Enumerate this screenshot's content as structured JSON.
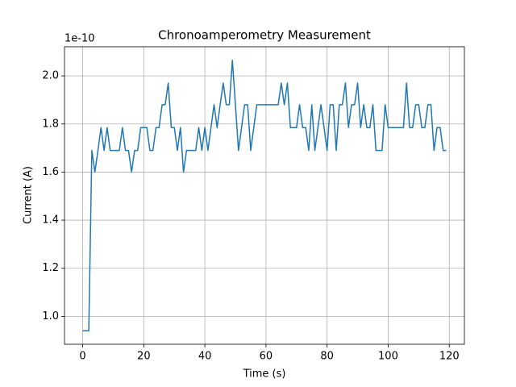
{
  "chart_data": {
    "type": "line",
    "title": "Chronoamperometry Measurement",
    "x_label": "Time (s)",
    "y_label": "Current (A)",
    "y_offset_label": "1e-10",
    "x": [
      0,
      1,
      2,
      3,
      4,
      5,
      6,
      7,
      8,
      9,
      10,
      11,
      12,
      13,
      14,
      15,
      16,
      17,
      18,
      19,
      20,
      21,
      22,
      23,
      24,
      25,
      26,
      27,
      28,
      29,
      30,
      31,
      32,
      33,
      34,
      35,
      36,
      37,
      38,
      39,
      40,
      41,
      42,
      43,
      44,
      45,
      46,
      47,
      48,
      49,
      50,
      51,
      52,
      53,
      54,
      55,
      56,
      57,
      58,
      59,
      60,
      61,
      62,
      63,
      64,
      65,
      66,
      67,
      68,
      69,
      70,
      71,
      72,
      73,
      74,
      75,
      76,
      77,
      78,
      79,
      80,
      81,
      82,
      83,
      84,
      85,
      86,
      87,
      88,
      89,
      90,
      91,
      92,
      93,
      94,
      95,
      96,
      97,
      98,
      99,
      100,
      101,
      102,
      103,
      104,
      105,
      106,
      107,
      108,
      109,
      110,
      111,
      112,
      113,
      114,
      115,
      116,
      117,
      118,
      119
    ],
    "series": [
      {
        "color": "#1f77b4",
        "values": [
          0.94,
          0.94,
          0.94,
          1.69,
          1.6,
          1.69,
          1.785,
          1.69,
          1.785,
          1.69,
          1.69,
          1.69,
          1.69,
          1.785,
          1.69,
          1.69,
          1.6,
          1.69,
          1.69,
          1.785,
          1.785,
          1.785,
          1.69,
          1.69,
          1.785,
          1.785,
          1.88,
          1.88,
          1.97,
          1.785,
          1.785,
          1.69,
          1.785,
          1.6,
          1.69,
          1.69,
          1.69,
          1.69,
          1.785,
          1.69,
          1.785,
          1.69,
          1.785,
          1.88,
          1.785,
          1.88,
          1.97,
          1.88,
          1.88,
          2.065,
          1.88,
          1.69,
          1.785,
          1.88,
          1.88,
          1.69,
          1.785,
          1.88,
          1.88,
          1.88,
          1.88,
          1.88,
          1.88,
          1.88,
          1.88,
          1.97,
          1.88,
          1.97,
          1.785,
          1.785,
          1.785,
          1.88,
          1.785,
          1.785,
          1.69,
          1.88,
          1.69,
          1.785,
          1.88,
          1.785,
          1.69,
          1.88,
          1.88,
          1.69,
          1.88,
          1.88,
          1.97,
          1.785,
          1.88,
          1.88,
          1.97,
          1.785,
          1.88,
          1.785,
          1.785,
          1.88,
          1.69,
          1.69,
          1.69,
          1.88,
          1.785,
          1.785,
          1.785,
          1.785,
          1.785,
          1.785,
          1.97,
          1.785,
          1.785,
          1.88,
          1.88,
          1.785,
          1.785,
          1.88,
          1.88,
          1.69,
          1.785,
          1.785,
          1.69,
          1.69
        ]
      }
    ],
    "xlim": [
      -5.95,
      124.95
    ],
    "ylim": [
      0.884,
      2.121
    ],
    "xticks": [
      0,
      20,
      40,
      60,
      80,
      100,
      120
    ],
    "yticks": [
      {
        "value": 1,
        "label": "1.0"
      },
      {
        "value": 1.2,
        "label": "1.2"
      },
      {
        "value": 1.4,
        "label": "1.4"
      },
      {
        "value": 1.6,
        "label": "1.6"
      },
      {
        "value": 1.8,
        "label": "1.8"
      },
      {
        "value": 2,
        "label": "2.0"
      }
    ],
    "grid": true
  }
}
